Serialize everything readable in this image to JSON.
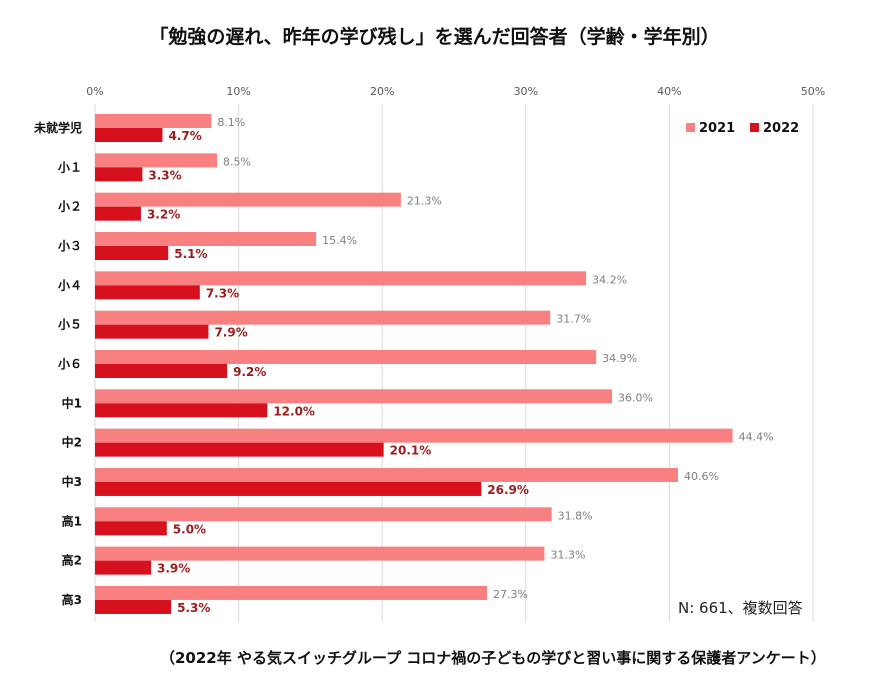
{
  "chart_data": {
    "type": "bar",
    "orientation": "horizontal",
    "title": "「勉強の遅れ、昨年の学び残し」を選んだ回答者（学齢・学年別）",
    "categories": [
      "未就学児",
      "小１",
      "小２",
      "小３",
      "小４",
      "小５",
      "小６",
      "中1",
      "中2",
      "中3",
      "高1",
      "高2",
      "高3"
    ],
    "series": [
      {
        "name": "2021",
        "color": "#F98080",
        "values": [
          8.1,
          8.5,
          21.3,
          15.4,
          34.2,
          31.7,
          34.9,
          36.0,
          44.4,
          40.6,
          31.8,
          31.3,
          27.3
        ]
      },
      {
        "name": "2022",
        "color": "#D7101E",
        "values": [
          4.7,
          3.3,
          3.2,
          5.1,
          7.3,
          7.9,
          9.2,
          12.0,
          20.1,
          26.9,
          5.0,
          3.9,
          5.3
        ]
      }
    ],
    "xlim": [
      0,
      50
    ],
    "x_ticks": [
      "0%",
      "10%",
      "20%",
      "30%",
      "40%",
      "50%"
    ],
    "grid": true,
    "legend_position": "top-right",
    "annotation": "N: 661、複数回答",
    "source": "（2022年 やる気スイッチグループ コロナ禍の子どもの学びと習い事に関する保護者アンケート）"
  }
}
